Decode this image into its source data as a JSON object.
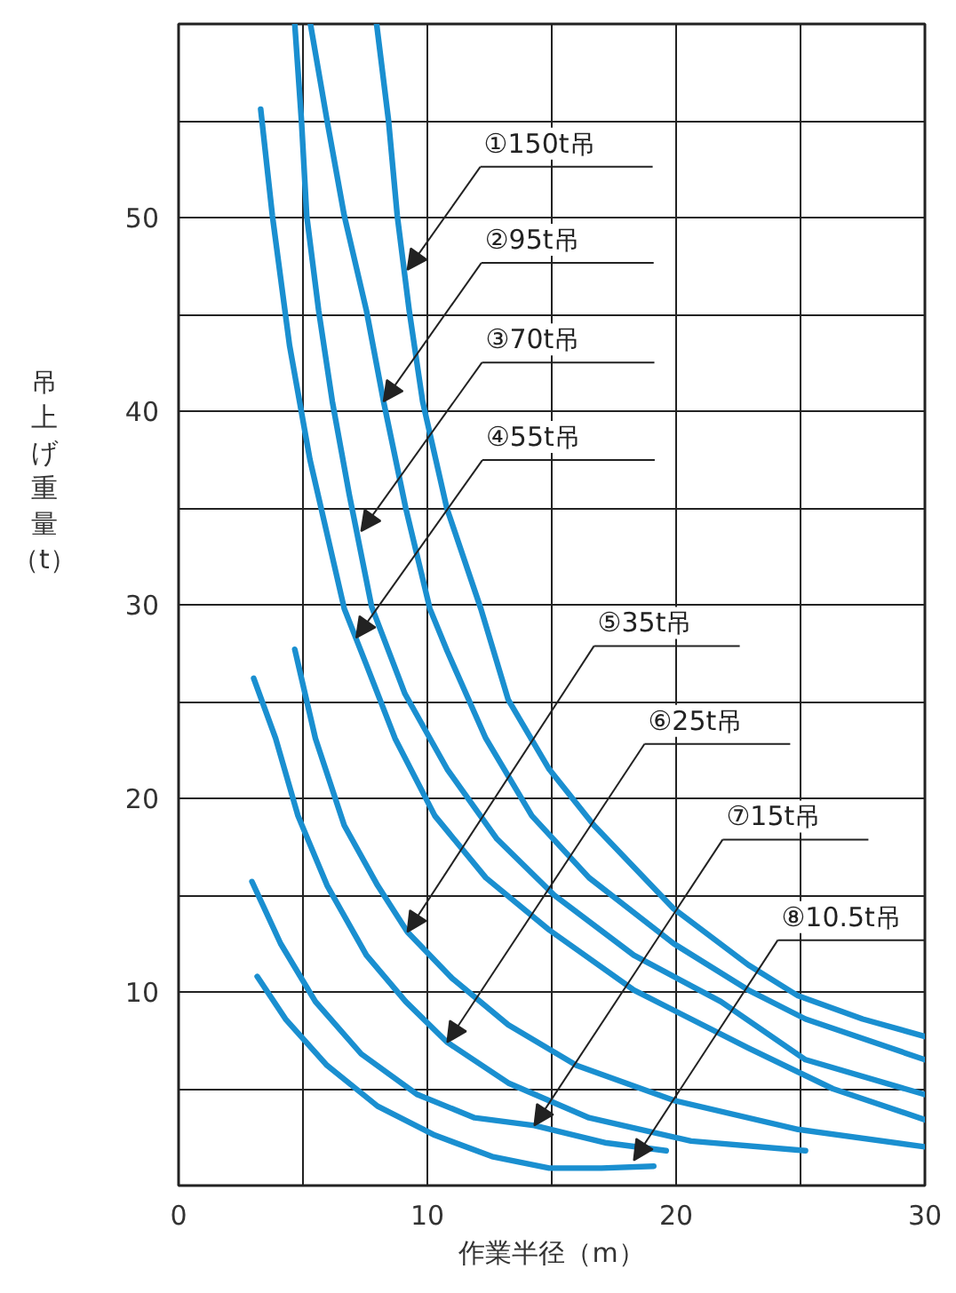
{
  "chart_data": {
    "type": "line",
    "xlabel": "作業半径（m）",
    "ylabel": "吊上げ重量（t）",
    "xlim": [
      0,
      30
    ],
    "ylim": [
      0,
      60
    ],
    "xticks": [
      0,
      {
        "value": 5,
        "label": null
      },
      10,
      {
        "value": 15,
        "label": null
      },
      20,
      {
        "value": 25,
        "label": null
      },
      30
    ],
    "yticks": [
      {
        "value": 5,
        "label": null
      },
      10,
      {
        "value": 15,
        "label": null
      },
      20,
      {
        "value": 25,
        "label": null
      },
      30,
      {
        "value": 35,
        "label": null
      },
      40,
      {
        "value": 45,
        "label": null
      },
      50,
      {
        "value": 55,
        "label": null
      }
    ],
    "grid": true,
    "marker": "none",
    "line_style": "solid",
    "series": [
      {
        "color": "#1a8fd0",
        "x": [
          7.96,
          8.44,
          8.79,
          9.27,
          9.81,
          10.78,
          12.15,
          13.25,
          14.9,
          16.7,
          19.9,
          22.9,
          24.9,
          27.5,
          30
        ],
        "values": [
          60,
          55,
          50.1,
          45.2,
          40.5,
          35,
          29.8,
          25.1,
          21.5,
          18.6,
          14.3,
          11.4,
          9.8,
          8.6,
          7.7
        ]
      },
      {
        "color": "#1a8fd0",
        "x": [
          5.3,
          5.97,
          6.66,
          7.55,
          8.24,
          9.13,
          10.1,
          10.8,
          12.35,
          14.2,
          16.5,
          19.9,
          22.9,
          25.2,
          30
        ],
        "values": [
          60,
          55,
          50.1,
          45.2,
          40.5,
          35,
          29.8,
          27.6,
          23.1,
          19.1,
          15.9,
          12.5,
          10.1,
          8.6,
          6.5
        ]
      },
      {
        "color": "#1a8fd0",
        "x": [
          4.67,
          4.94,
          5.15,
          5.63,
          6.18,
          6.86,
          7.76,
          9.1,
          10.8,
          12.8,
          15.1,
          18.3,
          21.8,
          25.2,
          30
        ],
        "values": [
          60,
          55,
          50.1,
          45.2,
          40.5,
          35.7,
          29.9,
          25.4,
          21.5,
          17.9,
          15,
          11.9,
          9.5,
          6.5,
          4.7
        ]
      },
      {
        "color": "#1a8fd0",
        "x": [
          3.3,
          3.77,
          4.46,
          5.28,
          6.66,
          7.55,
          8.7,
          10.3,
          12.35,
          14.9,
          18.3,
          22.9,
          26.3,
          30
        ],
        "values": [
          55.6,
          50.1,
          43.4,
          37.5,
          29.8,
          26.9,
          23.1,
          19.1,
          15.9,
          13.2,
          10.1,
          7.1,
          5,
          3.4
        ]
      },
      {
        "color": "#1a8fd0",
        "x": [
          4.67,
          5.5,
          6.66,
          8,
          9.2,
          11,
          13.25,
          16,
          19.9,
          24.9,
          30
        ],
        "values": [
          27.7,
          23.1,
          18.6,
          15.5,
          13.1,
          10.7,
          8.3,
          6.2,
          4.4,
          2.9,
          2
        ]
      },
      {
        "color": "#1a8fd0",
        "x": [
          3.02,
          3.9,
          4.8,
          5.97,
          7.55,
          9.13,
          10.8,
          13.25,
          16.5,
          20.6,
          25.2
        ],
        "values": [
          26.2,
          23.1,
          19.1,
          15.5,
          11.9,
          9.5,
          7.4,
          5.3,
          3.5,
          2.3,
          1.8
        ]
      },
      {
        "color": "#1a8fd0",
        "x": [
          2.95,
          4.1,
          5.5,
          7.34,
          9.6,
          11.9,
          14.3,
          17.2,
          19.6
        ],
        "values": [
          15.7,
          12.5,
          9.5,
          6.8,
          4.7,
          3.5,
          3.1,
          2.2,
          1.8
        ]
      },
      {
        "color": "#1a8fd0",
        "x": [
          3.16,
          4.3,
          5.97,
          8,
          10.3,
          12.6,
          14.9,
          17,
          19.1
        ],
        "values": [
          10.8,
          8.6,
          6.2,
          4.1,
          2.6,
          1.5,
          0.9,
          0.9,
          1
        ]
      }
    ],
    "annotations": [
      {
        "text": "①150t吊",
        "x": 9.2,
        "y": 47.3
      },
      {
        "text": "②95t吊",
        "x": 8.24,
        "y": 40.5
      },
      {
        "text": "③70t吊",
        "x": 7.34,
        "y": 33.8
      },
      {
        "text": "④55t吊",
        "x": 7.14,
        "y": 28.3
      },
      {
        "text": "⑤35t吊",
        "x": 9.2,
        "y": 13.1
      },
      {
        "text": "⑥25t吊",
        "x": 10.8,
        "y": 7.4
      },
      {
        "text": "⑦15t吊",
        "x": 14.3,
        "y": 3.1
      },
      {
        "text": "⑧10.5t吊",
        "x": 18.3,
        "y": 1.3
      }
    ]
  }
}
